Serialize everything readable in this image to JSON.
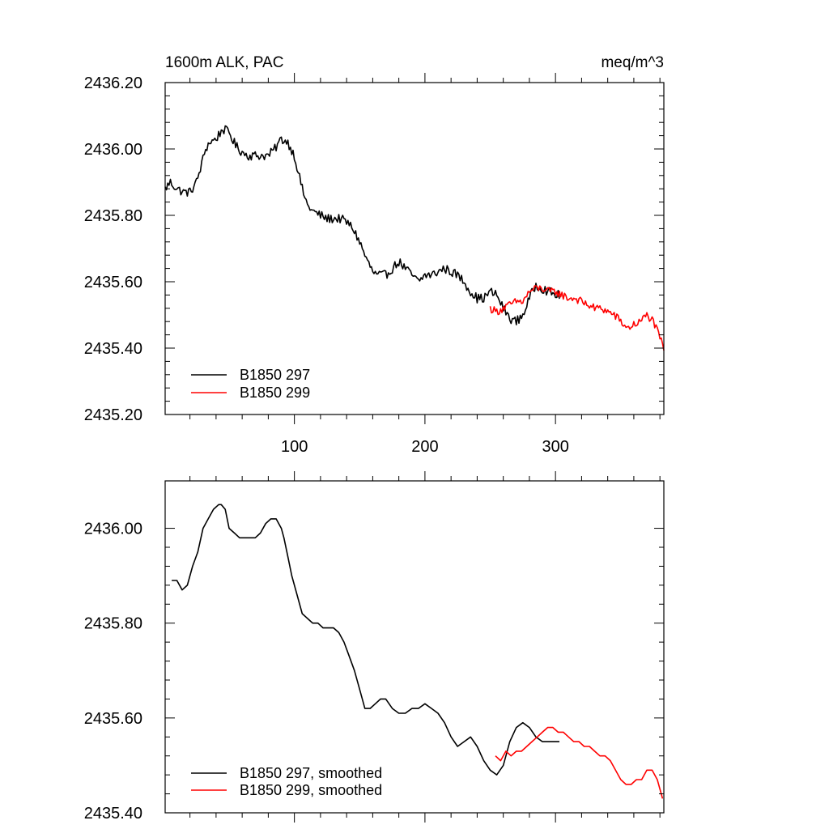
{
  "chart_data": [
    {
      "type": "line",
      "title_left": "1600m ALK, PAC",
      "title_right": "meq/m^3",
      "xlabel": "",
      "ylabel": "",
      "xlim": [
        1,
        383
      ],
      "ylim": [
        2435.2,
        2436.2
      ],
      "xticks": [
        100,
        200,
        300
      ],
      "yticks": [
        "2435.20",
        "2435.40",
        "2435.60",
        "2435.80",
        "2436.00",
        "2436.20"
      ],
      "grid": false,
      "legend_position": "bottom-left",
      "series": [
        {
          "name": "B1850 297",
          "color": "#000000",
          "noise": 0.014,
          "x": [
            1,
            5,
            10,
            15,
            20,
            25,
            28,
            32,
            35,
            40,
            45,
            50,
            55,
            60,
            65,
            70,
            75,
            80,
            85,
            90,
            95,
            100,
            103,
            106,
            110,
            115,
            120,
            125,
            130,
            135,
            140,
            145,
            150,
            155,
            160,
            163,
            166,
            170,
            175,
            180,
            185,
            190,
            195,
            200,
            205,
            210,
            215,
            220,
            225,
            230,
            235,
            240,
            245,
            250,
            255,
            260,
            265,
            270,
            275,
            280,
            285,
            290,
            295,
            300,
            303
          ],
          "y": [
            2435.88,
            2435.9,
            2435.88,
            2435.87,
            2435.87,
            2435.9,
            2435.94,
            2436.0,
            2436.02,
            2436.03,
            2436.06,
            2436.05,
            2436.01,
            2435.99,
            2435.98,
            2435.98,
            2435.98,
            2435.98,
            2436.0,
            2436.03,
            2436.02,
            2435.98,
            2435.93,
            2435.88,
            2435.83,
            2435.81,
            2435.8,
            2435.79,
            2435.79,
            2435.79,
            2435.78,
            2435.76,
            2435.72,
            2435.67,
            2435.63,
            2435.62,
            2435.62,
            2435.62,
            2435.64,
            2435.66,
            2435.64,
            2435.62,
            2435.6,
            2435.62,
            2435.62,
            2435.63,
            2435.64,
            2435.63,
            2435.62,
            2435.6,
            2435.57,
            2435.55,
            2435.55,
            2435.57,
            2435.56,
            2435.52,
            2435.49,
            2435.48,
            2435.5,
            2435.55,
            2435.59,
            2435.58,
            2435.57,
            2435.56,
            2435.56
          ]
        },
        {
          "name": "B1850 299",
          "color": "#ff0000",
          "noise": 0.012,
          "x": [
            250,
            255,
            260,
            265,
            270,
            275,
            280,
            285,
            290,
            295,
            300,
            305,
            310,
            315,
            320,
            325,
            330,
            335,
            340,
            345,
            350,
            355,
            360,
            365,
            370,
            375,
            380,
            383
          ],
          "y": [
            2435.52,
            2435.51,
            2435.52,
            2435.53,
            2435.54,
            2435.54,
            2435.57,
            2435.58,
            2435.58,
            2435.57,
            2435.57,
            2435.56,
            2435.55,
            2435.55,
            2435.54,
            2435.53,
            2435.52,
            2435.52,
            2435.51,
            2435.5,
            2435.48,
            2435.46,
            2435.47,
            2435.48,
            2435.5,
            2435.48,
            2435.43,
            2435.4
          ]
        }
      ]
    },
    {
      "type": "line",
      "title_left": "",
      "title_right": "",
      "xlabel": "",
      "ylabel": "",
      "xlim": [
        1,
        383
      ],
      "ylim": [
        2435.4,
        2436.1
      ],
      "xticks": [
        100,
        200,
        300
      ],
      "yticks": [
        "2435.40",
        "2435.60",
        "2435.80",
        "2436.00"
      ],
      "grid": false,
      "legend_position": "bottom-left",
      "series": [
        {
          "name": "B1850 297, smoothed",
          "color": "#000000",
          "noise": 0,
          "x": [
            6,
            10,
            14,
            18,
            22,
            26,
            30,
            34,
            38,
            42,
            44,
            47,
            50,
            54,
            58,
            62,
            66,
            70,
            74,
            78,
            82,
            86,
            90,
            92,
            95,
            98,
            102,
            106,
            110,
            114,
            118,
            122,
            126,
            130,
            134,
            138,
            142,
            146,
            150,
            154,
            158,
            162,
            166,
            170,
            175,
            180,
            185,
            190,
            195,
            200,
            205,
            210,
            215,
            220,
            225,
            230,
            235,
            240,
            245,
            250,
            255,
            260,
            265,
            270,
            275,
            280,
            285,
            290,
            295,
            300,
            303
          ],
          "y": [
            2435.89,
            2435.89,
            2435.87,
            2435.88,
            2435.92,
            2435.95,
            2436.0,
            2436.02,
            2436.04,
            2436.05,
            2436.05,
            2436.04,
            2436.0,
            2435.99,
            2435.98,
            2435.98,
            2435.98,
            2435.98,
            2435.99,
            2436.01,
            2436.02,
            2436.02,
            2436.0,
            2435.98,
            2435.94,
            2435.9,
            2435.86,
            2435.82,
            2435.81,
            2435.8,
            2435.8,
            2435.79,
            2435.79,
            2435.79,
            2435.78,
            2435.76,
            2435.73,
            2435.7,
            2435.66,
            2435.62,
            2435.62,
            2435.63,
            2435.64,
            2435.64,
            2435.62,
            2435.61,
            2435.61,
            2435.62,
            2435.62,
            2435.63,
            2435.62,
            2435.61,
            2435.59,
            2435.56,
            2435.54,
            2435.55,
            2435.56,
            2435.54,
            2435.51,
            2435.49,
            2435.48,
            2435.5,
            2435.55,
            2435.58,
            2435.59,
            2435.58,
            2435.56,
            2435.55,
            2435.55,
            2435.55,
            2435.55
          ]
        },
        {
          "name": "B1850 299, smoothed",
          "color": "#ff0000",
          "noise": 0,
          "x": [
            254,
            258,
            262,
            266,
            270,
            274,
            278,
            282,
            286,
            290,
            294,
            298,
            302,
            306,
            310,
            314,
            318,
            322,
            326,
            330,
            334,
            338,
            342,
            346,
            350,
            354,
            358,
            362,
            366,
            370,
            374,
            378,
            382
          ],
          "y": [
            2435.52,
            2435.51,
            2435.53,
            2435.52,
            2435.53,
            2435.53,
            2435.54,
            2435.55,
            2435.56,
            2435.57,
            2435.58,
            2435.58,
            2435.57,
            2435.57,
            2435.56,
            2435.55,
            2435.55,
            2435.54,
            2435.54,
            2435.53,
            2435.52,
            2435.52,
            2435.51,
            2435.49,
            2435.47,
            2435.46,
            2435.46,
            2435.47,
            2435.47,
            2435.49,
            2435.49,
            2435.47,
            2435.43
          ]
        }
      ]
    }
  ]
}
